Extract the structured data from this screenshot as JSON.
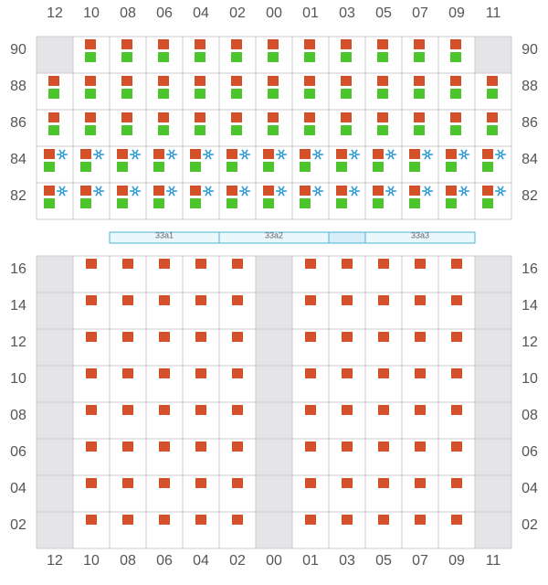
{
  "columns": [
    "12",
    "10",
    "08",
    "06",
    "04",
    "02",
    "00",
    "01",
    "03",
    "05",
    "07",
    "09",
    "11"
  ],
  "deck_rows": [
    "90",
    "88",
    "86",
    "84",
    "82"
  ],
  "hatch_covers": [
    "33a1",
    "33a2",
    "33a3"
  ],
  "hold_rows": [
    "16",
    "14",
    "12",
    "10",
    "08",
    "06",
    "04",
    "02"
  ]
}
